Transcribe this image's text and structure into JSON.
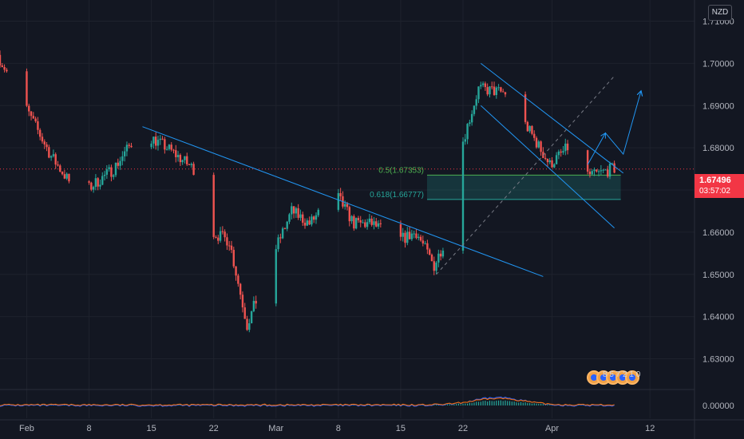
{
  "chart_data": {
    "type": "candlestick",
    "symbol_currency": "NZD",
    "last_price": "1.67496",
    "countdown": "03:57:02",
    "y_ticks": [
      "1.71000",
      "1.70000",
      "1.69000",
      "1.68000",
      "1.67000",
      "1.66000",
      "1.65000",
      "1.64000",
      "1.63000"
    ],
    "y_tick_values": [
      1.71,
      1.7,
      1.69,
      1.68,
      1.67,
      1.66,
      1.65,
      1.64,
      1.63
    ],
    "ylim": [
      1.625,
      1.7135
    ],
    "x_ticks": [
      "Feb",
      "8",
      "15",
      "22",
      "Mar",
      "8",
      "15",
      "22",
      "Apr",
      "12"
    ],
    "x_tick_dates": [
      "2021-02-01",
      "2021-02-08",
      "2021-02-15",
      "2021-02-22",
      "2021-03-01",
      "2021-03-08",
      "2021-03-15",
      "2021-03-22",
      "2021-04-01",
      "2021-04-12"
    ],
    "xlim": [
      "2021-01-29",
      "2021-04-17"
    ],
    "fib_levels": [
      {
        "label": "0.5(1.67353)",
        "value": 1.67353,
        "color": "#4caf50"
      },
      {
        "label": "0.618(1.66777)",
        "value": 1.66777,
        "color": "#26a69a"
      }
    ],
    "trendlines": [
      {
        "from": [
          "2021-02-14",
          1.685
        ],
        "to": [
          "2021-03-31",
          1.6495
        ]
      },
      {
        "from": [
          "2021-03-24",
          1.7
        ],
        "to": [
          "2021-04-09",
          1.674
        ]
      },
      {
        "from": [
          "2021-03-24",
          1.69
        ],
        "to": [
          "2021-04-08",
          1.661
        ]
      },
      {
        "from": [
          "2021-03-19",
          1.65
        ],
        "to": [
          "2021-04-08",
          1.697
        ],
        "style": "dashed"
      }
    ],
    "projection_arrow": [
      [
        "2021-04-05",
        1.676
      ],
      [
        "2021-04-07",
        1.6835
      ],
      [
        "2021-04-09",
        1.6785
      ],
      [
        "2021-04-11",
        1.6935
      ]
    ],
    "macd_ticks": [
      "0.00000"
    ],
    "event_label": "8 5 7 2 1 0",
    "grid": true,
    "up_color": "#26a69a",
    "down_color": "#ef5350"
  }
}
